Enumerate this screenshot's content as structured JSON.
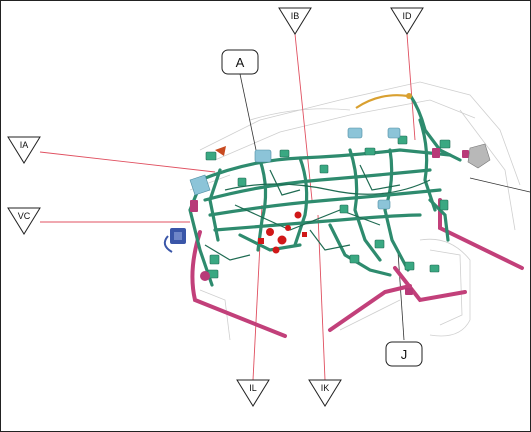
{
  "callouts": {
    "top_left": "IB",
    "top_right": "ID",
    "left_upper": "IA",
    "left_lower": "VC",
    "bottom_left": "IL",
    "bottom_middle": "IK"
  },
  "labels": {
    "a": "A",
    "j": "J"
  },
  "colors": {
    "harness": "#2e8b6e",
    "leader": "#e05060",
    "ground_strap": "#c2407a",
    "connector_red": "#d01818",
    "connector_blue": "#3a56a8",
    "orange_wire": "#d9a030"
  }
}
